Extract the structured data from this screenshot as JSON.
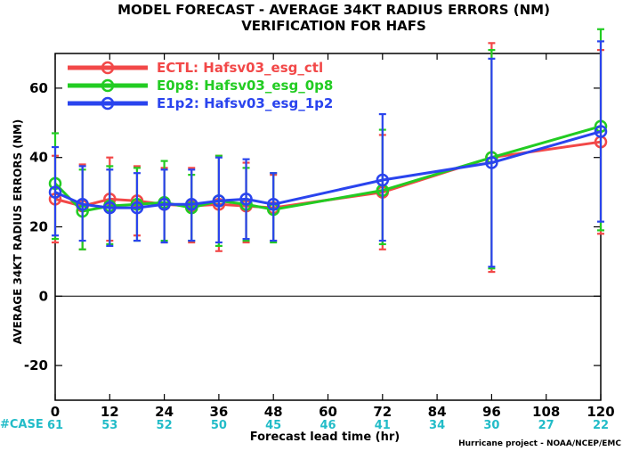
{
  "chart_data": {
    "type": "line",
    "title": "MODEL FORECAST - AVERAGE 34KT RADIUS ERRORS (NM)",
    "subtitle": "VERIFICATION FOR HAFS",
    "xlabel": "Forecast lead time (hr)",
    "ylabel": "AVERAGE 34KT RADIUS ERRORS (NM)",
    "xlim": [
      0,
      120
    ],
    "ylim": [
      -30,
      70
    ],
    "x_ticks": [
      0,
      12,
      24,
      36,
      48,
      60,
      72,
      84,
      96,
      108,
      120
    ],
    "y_ticks": [
      -20,
      0,
      20,
      40,
      60
    ],
    "zero_line": true,
    "legend_position": "top-left",
    "case_label": "#CASE",
    "cases": [
      {
        "x": 0,
        "n": "61"
      },
      {
        "x": 12,
        "n": "53"
      },
      {
        "x": 24,
        "n": "52"
      },
      {
        "x": 36,
        "n": "50"
      },
      {
        "x": 48,
        "n": "45"
      },
      {
        "x": 60,
        "n": "46"
      },
      {
        "x": 72,
        "n": "41"
      },
      {
        "x": 84,
        "n": "34"
      },
      {
        "x": 96,
        "n": "30"
      },
      {
        "x": 108,
        "n": "27"
      },
      {
        "x": 120,
        "n": "22"
      }
    ],
    "credit": "Hurricane project - NOAA/NCEP/EMC",
    "series": [
      {
        "name": "ECTL: Hafsv03_esg_ctl",
        "color": "#f24848",
        "x": [
          0,
          6,
          12,
          18,
          24,
          30,
          36,
          42,
          48,
          72,
          96,
          120
        ],
        "y": [
          28.0,
          26.0,
          28.0,
          27.5,
          26.5,
          26.0,
          26.5,
          26.0,
          25.5,
          30.0,
          40.0,
          44.5
        ],
        "lo": [
          15.5,
          13.5,
          16.0,
          17.5,
          15.5,
          15.5,
          13.0,
          15.5,
          16.0,
          13.5,
          7.0,
          18.0
        ],
        "hi": [
          40.5,
          38.0,
          40.0,
          37.5,
          37.0,
          37.0,
          40.5,
          38.5,
          35.0,
          46.5,
          73.0,
          71.0
        ]
      },
      {
        "name": "E0p8: Hafsv03_esg_0p8",
        "color": "#22cc22",
        "x": [
          0,
          6,
          12,
          18,
          24,
          30,
          36,
          42,
          48,
          72,
          96,
          120
        ],
        "y": [
          32.5,
          24.5,
          26.0,
          26.5,
          27.0,
          25.5,
          27.5,
          26.5,
          25.0,
          30.5,
          40.0,
          49.0
        ],
        "lo": [
          16.5,
          13.5,
          15.0,
          16.0,
          16.0,
          16.0,
          14.5,
          16.0,
          15.5,
          15.0,
          8.0,
          19.0
        ],
        "hi": [
          47.0,
          36.5,
          37.5,
          37.0,
          39.0,
          35.0,
          40.5,
          37.0,
          35.5,
          48.0,
          71.0,
          77.0
        ]
      },
      {
        "name": "E1p2: Hafsv03_esg_1p2",
        "color": "#2a44ee",
        "x": [
          0,
          6,
          12,
          18,
          24,
          30,
          36,
          42,
          48,
          72,
          96,
          120
        ],
        "y": [
          30.0,
          26.5,
          25.5,
          25.5,
          26.5,
          26.5,
          27.5,
          28.0,
          26.5,
          33.5,
          38.5,
          47.5
        ],
        "lo": [
          17.5,
          16.0,
          14.5,
          16.0,
          15.5,
          16.0,
          15.5,
          16.5,
          16.0,
          16.0,
          8.5,
          21.5
        ],
        "hi": [
          43.0,
          37.5,
          36.5,
          35.5,
          36.5,
          36.5,
          40.0,
          39.5,
          35.5,
          52.5,
          68.5,
          73.5
        ]
      }
    ]
  }
}
